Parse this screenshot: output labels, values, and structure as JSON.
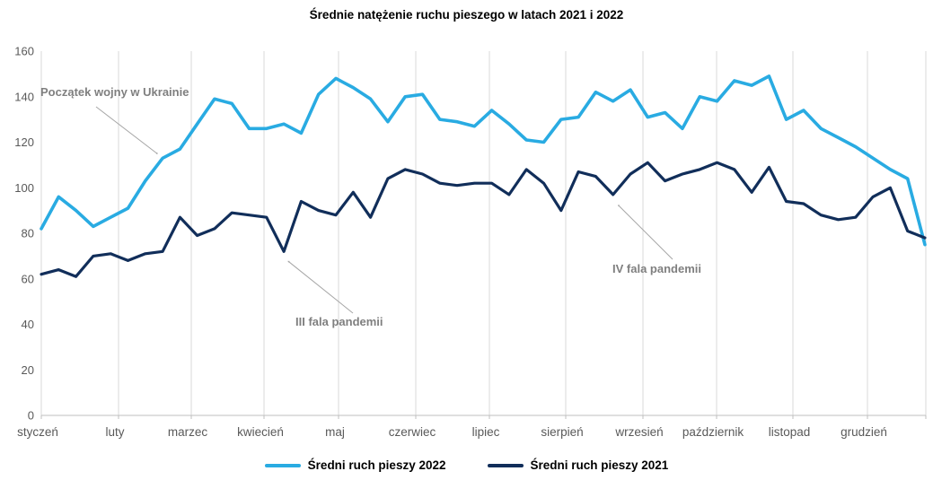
{
  "title": "Średnie natężenie ruchu pieszego w latach 2021 i 2022",
  "colors": {
    "series_2022": "#29ABE2",
    "series_2021": "#112E5A",
    "gridline": "#D9D9D9",
    "axis": "#BFBFBF",
    "tick_label": "#595959",
    "annotation_text": "#7F7F7F",
    "annotation_arrow": "#A6A6A6"
  },
  "legend": [
    {
      "label": "Średni ruch pieszy 2022",
      "color": "#29ABE2"
    },
    {
      "label": "Średni ruch pieszy 2021",
      "color": "#112E5A"
    }
  ],
  "annotations": {
    "war": {
      "text": "Początek wojny w Ukrainie",
      "series": "Średni ruch pieszy 2022",
      "week_index": 7
    },
    "wave3": {
      "text": "III fala pandemii",
      "series": "Średni ruch pieszy 2021",
      "week_index": 14
    },
    "wave4": {
      "text": "IV fala pandemii",
      "series": "Średni ruch pieszy 2021",
      "week_index": 33
    }
  },
  "chart_data": {
    "type": "line",
    "title": "Średnie natężenie ruchu pieszego w latach 2021 i 2022",
    "x_unit": "week",
    "categories": [
      "styczeń",
      "luty",
      "marzec",
      "kwiecień",
      "maj",
      "czerwiec",
      "lipiec",
      "sierpień",
      "wrzesień",
      "październik",
      "listopad",
      "grudzień"
    ],
    "y_ticks": [
      0,
      20,
      40,
      60,
      80,
      100,
      120,
      140,
      160
    ],
    "ylim": [
      0,
      160
    ],
    "grid": "vertical-monthly",
    "legend_position": "bottom",
    "series": [
      {
        "name": "Średni ruch pieszy 2022",
        "color": "#29ABE2",
        "values": [
          82,
          96,
          90,
          83,
          87,
          91,
          103,
          113,
          117,
          128,
          139,
          137,
          126,
          126,
          128,
          124,
          141,
          148,
          144,
          139,
          129,
          140,
          141,
          130,
          129,
          127,
          134,
          128,
          121,
          120,
          130,
          131,
          142,
          138,
          143,
          131,
          133,
          126,
          140,
          138,
          147,
          145,
          149,
          130,
          134,
          126,
          122,
          118,
          113,
          108,
          104,
          75
        ]
      },
      {
        "name": "Średni ruch pieszy 2021",
        "color": "#112E5A",
        "values": [
          62,
          64,
          61,
          70,
          71,
          68,
          71,
          72,
          87,
          79,
          82,
          89,
          88,
          87,
          72,
          94,
          90,
          88,
          98,
          87,
          104,
          108,
          106,
          102,
          101,
          102,
          102,
          97,
          108,
          102,
          90,
          107,
          105,
          97,
          106,
          111,
          103,
          106,
          108,
          111,
          108,
          98,
          109,
          94,
          93,
          88,
          86,
          87,
          96,
          100,
          81,
          78
        ]
      }
    ]
  }
}
